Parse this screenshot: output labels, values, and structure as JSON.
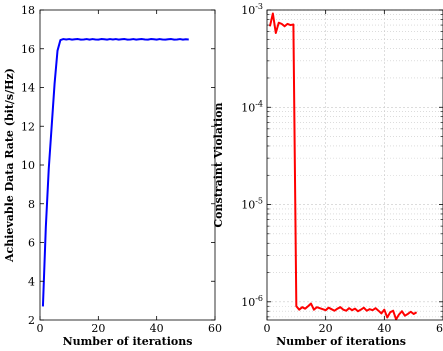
{
  "chart_data": [
    {
      "type": "line",
      "title": "",
      "xlabel": "Number of iterations",
      "ylabel": "Achievable Data Rate (bit/s/Hz)",
      "xlim": [
        0,
        60
      ],
      "ylim": [
        2,
        18
      ],
      "xticks": [
        0,
        20,
        40,
        60
      ],
      "yticks": [
        2,
        4,
        6,
        8,
        10,
        12,
        14,
        16,
        18
      ],
      "grid": false,
      "color": "#0000ff",
      "series": [
        {
          "x": [
            1,
            2,
            3,
            4,
            5,
            6,
            7,
            8,
            9,
            10,
            11,
            12,
            13,
            14,
            15,
            16,
            17,
            18,
            19,
            20,
            21,
            22,
            23,
            24,
            25,
            26,
            27,
            28,
            29,
            30,
            31,
            32,
            33,
            34,
            35,
            36,
            37,
            38,
            39,
            40,
            41,
            42,
            43,
            44,
            45,
            46,
            47,
            48,
            49,
            50,
            51
          ],
          "values": [
            2.7,
            6.8,
            9.8,
            12.0,
            14.2,
            15.9,
            16.45,
            16.5,
            16.48,
            16.5,
            16.47,
            16.49,
            16.5,
            16.47,
            16.48,
            16.5,
            16.47,
            16.5,
            16.48,
            16.47,
            16.5,
            16.49,
            16.47,
            16.5,
            16.48,
            16.5,
            16.47,
            16.49,
            16.5,
            16.47,
            16.48,
            16.5,
            16.47,
            16.49,
            16.5,
            16.48,
            16.47,
            16.5,
            16.49,
            16.47,
            16.5,
            16.48,
            16.47,
            16.49,
            16.5,
            16.47,
            16.48,
            16.5,
            16.47,
            16.49,
            16.48
          ]
        }
      ]
    },
    {
      "type": "line",
      "title": "",
      "xlabel": "Number of iterations",
      "ylabel": "Constraint Violation",
      "xlim": [
        0,
        60
      ],
      "ylim": [
        6.5e-07,
        0.001
      ],
      "yscale": "log",
      "xticks": [
        0,
        20,
        40,
        60
      ],
      "yticks": [
        1e-06,
        1e-05,
        0.0001,
        0.001
      ],
      "ytick_labels": [
        {
          "base": "10",
          "exp": "-6"
        },
        {
          "base": "10",
          "exp": "-5"
        },
        {
          "base": "10",
          "exp": "-4"
        },
        {
          "base": "10",
          "exp": "-3"
        }
      ],
      "grid": true,
      "color": "#ff0000",
      "series": [
        {
          "x": [
            1,
            2,
            3,
            4,
            5,
            6,
            7,
            8,
            9,
            10,
            11,
            12,
            13,
            14,
            15,
            16,
            17,
            18,
            19,
            20,
            21,
            22,
            23,
            24,
            25,
            26,
            27,
            28,
            29,
            30,
            31,
            32,
            33,
            34,
            35,
            36,
            37,
            38,
            39,
            40,
            41,
            42,
            43,
            44,
            45,
            46,
            47,
            48,
            49,
            50,
            51
          ],
          "values": [
            0.00068,
            0.00092,
            0.00058,
            0.00074,
            0.00072,
            0.00068,
            0.00072,
            0.0007,
            0.00071,
            9e-07,
            8.3e-07,
            8.8e-07,
            8.5e-07,
            9e-07,
            9.6e-07,
            8.3e-07,
            8.8e-07,
            8.6e-07,
            8.4e-07,
            8.2e-07,
            8.7e-07,
            8.4e-07,
            8.1e-07,
            8.5e-07,
            8.8e-07,
            8.3e-07,
            8.1e-07,
            8.6e-07,
            8.2e-07,
            8.5e-07,
            8e-07,
            8.3e-07,
            8.7e-07,
            8.1e-07,
            8.4e-07,
            8.2e-07,
            8.6e-07,
            8.1e-07,
            7.6e-07,
            8.3e-07,
            6.9e-07,
            7.8e-07,
            8.1e-07,
            6.6e-07,
            7.4e-07,
            8e-07,
            7.2e-07,
            7.5e-07,
            7.9e-07,
            7.5e-07,
            7.8e-07
          ]
        }
      ]
    }
  ]
}
